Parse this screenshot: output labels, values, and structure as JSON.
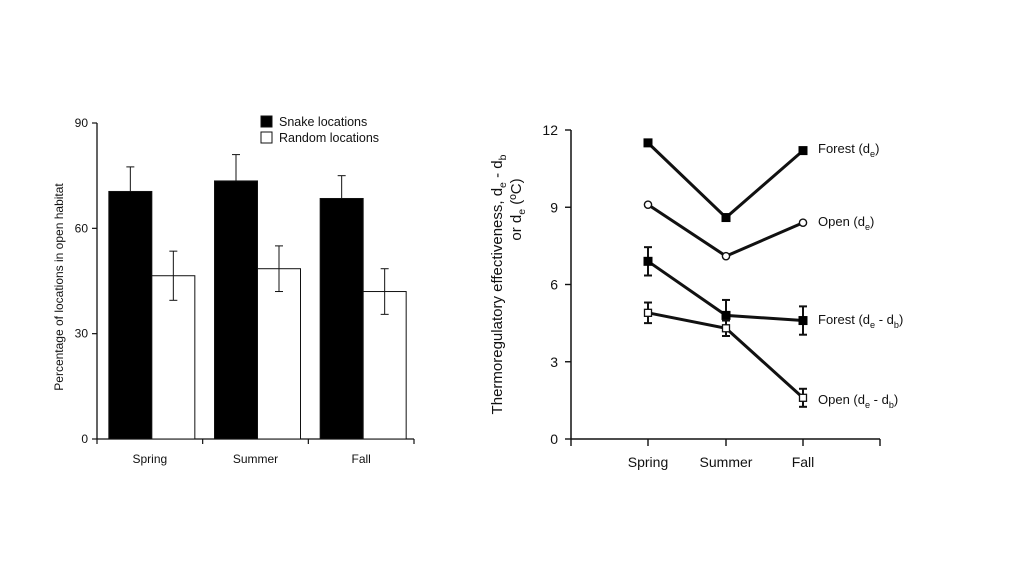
{
  "chart_data": [
    {
      "type": "bar",
      "ylabel": "Percentage of locations in open habitat",
      "ylim": [
        0,
        90
      ],
      "yticks": [
        "0",
        "30",
        "60",
        "90"
      ],
      "categories": [
        "Spring",
        "Summer",
        "Fall"
      ],
      "legend_position": "top-right",
      "series": [
        {
          "name": "Snake locations",
          "fill": "#000000",
          "values": [
            70.5,
            73.5,
            68.5
          ],
          "errors": [
            7.0,
            7.5,
            6.5
          ]
        },
        {
          "name": "Random locations",
          "fill": "#ffffff",
          "values": [
            46.5,
            48.5,
            42.0
          ],
          "errors": [
            7.0,
            6.5,
            6.5
          ]
        }
      ]
    },
    {
      "type": "line",
      "ylabel_line1": "Thermoregulatory effectiveness, d",
      "ylabel_line1_sub": "e",
      "ylabel_line1_mid": " - d",
      "ylabel_line1_sub2": "b",
      "ylabel_line2": "or d",
      "ylabel_line2_sub": "e",
      "ylabel_line2_unit": " (ºC)",
      "ylim": [
        0,
        12
      ],
      "yticks": [
        "0",
        "3",
        "6",
        "9",
        "12"
      ],
      "categories": [
        "Spring",
        "Summer",
        "Fall"
      ],
      "series": [
        {
          "name": "Forest (de)",
          "lbl": "Forest (d",
          "sub": "e",
          "mid": "",
          "sub2": "",
          "end": ")",
          "marker": "filled-square",
          "values": [
            11.5,
            8.6,
            11.2
          ],
          "errors": [
            0,
            0,
            0
          ]
        },
        {
          "name": "Open (de)",
          "lbl": "Open (d",
          "sub": "e",
          "mid": "",
          "sub2": "",
          "end": ")",
          "marker": "open-circle",
          "values": [
            9.1,
            7.1,
            8.4
          ],
          "errors": [
            0,
            0,
            0
          ]
        },
        {
          "name": "Forest (de - db)",
          "lbl": "Forest (d",
          "sub": "e",
          "mid": " - d",
          "sub2": "b",
          "end": ")",
          "marker": "filled-square",
          "values": [
            6.9,
            4.8,
            4.6
          ],
          "errors": [
            0.55,
            0.6,
            0.55
          ]
        },
        {
          "name": "Open (de - db)",
          "lbl": "Open (d",
          "sub": "e",
          "mid": " - d",
          "sub2": "b",
          "end": ")",
          "marker": "open-square",
          "values": [
            4.9,
            4.3,
            1.6
          ],
          "errors": [
            0.4,
            0.3,
            0.35
          ]
        }
      ]
    }
  ]
}
